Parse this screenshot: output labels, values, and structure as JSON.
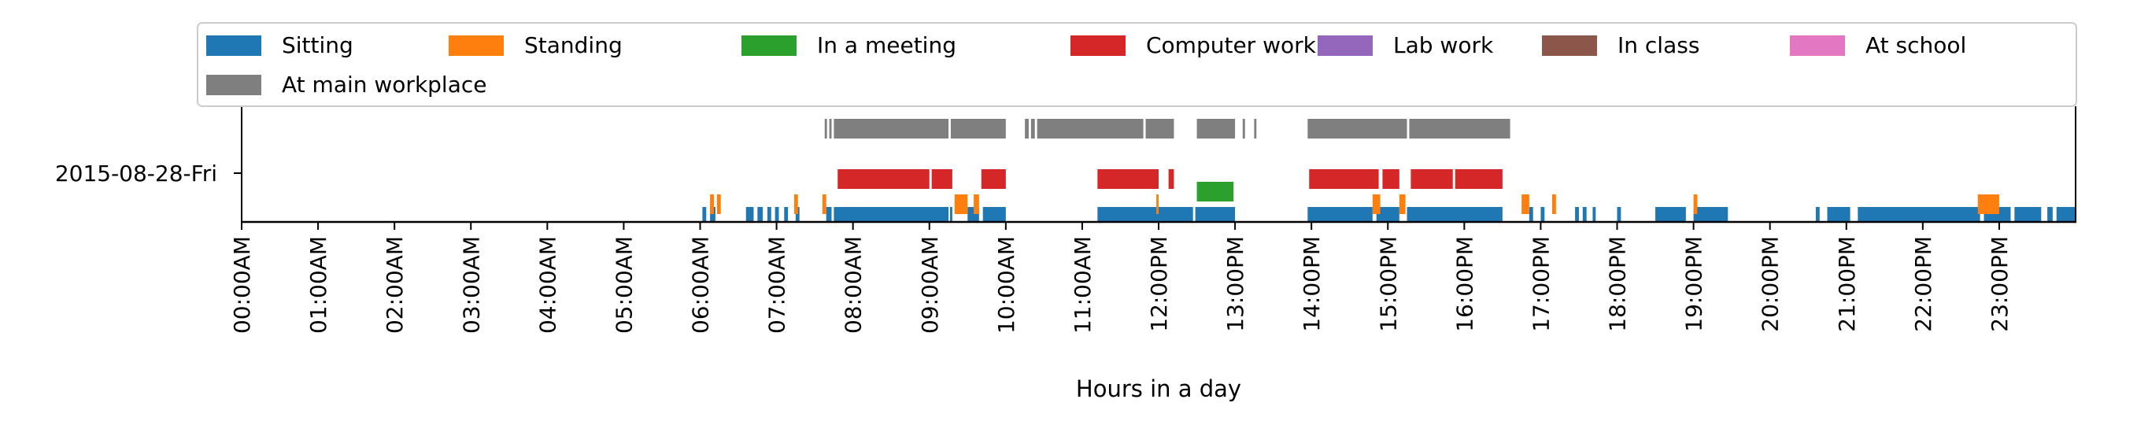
{
  "chart_data": {
    "type": "timeline",
    "title": "",
    "xlabel": "Hours in a day",
    "ylabel": "",
    "xlim": [
      0,
      24
    ],
    "day_label": "2015-08-28-Fri",
    "legend_placement": "top",
    "x_tick_labels": [
      "00:00AM",
      "01:00AM",
      "02:00AM",
      "03:00AM",
      "04:00AM",
      "05:00AM",
      "06:00AM",
      "07:00AM",
      "08:00AM",
      "09:00AM",
      "10:00AM",
      "11:00AM",
      "12:00PM",
      "13:00PM",
      "14:00PM",
      "15:00PM",
      "16:00PM",
      "17:00PM",
      "18:00PM",
      "19:00PM",
      "20:00PM",
      "21:00PM",
      "22:00PM",
      "23:00PM"
    ],
    "series": [
      {
        "name": "Sitting",
        "color": "#1f77b4",
        "intervals": [
          [
            6.03,
            6.08
          ],
          [
            6.13,
            6.2
          ],
          [
            6.6,
            6.7
          ],
          [
            6.75,
            6.82
          ],
          [
            6.88,
            6.93
          ],
          [
            6.98,
            7.03
          ],
          [
            7.1,
            7.15
          ],
          [
            7.25,
            7.3
          ],
          [
            7.65,
            7.72
          ],
          [
            7.75,
            9.25
          ],
          [
            9.27,
            9.3
          ],
          [
            9.5,
            9.65
          ],
          [
            9.7,
            10.0
          ],
          [
            11.2,
            12.45
          ],
          [
            12.48,
            13.0
          ],
          [
            13.95,
            14.8
          ],
          [
            14.85,
            15.15
          ],
          [
            15.25,
            16.5
          ],
          [
            16.85,
            16.9
          ],
          [
            17.0,
            17.05
          ],
          [
            17.45,
            17.5
          ],
          [
            17.55,
            17.6
          ],
          [
            17.68,
            17.72
          ],
          [
            18.0,
            18.05
          ],
          [
            18.5,
            18.9
          ],
          [
            19.0,
            19.45
          ],
          [
            20.6,
            20.65
          ],
          [
            20.75,
            21.05
          ],
          [
            21.15,
            22.75
          ],
          [
            22.8,
            23.15
          ],
          [
            23.2,
            23.55
          ],
          [
            23.63,
            23.7
          ],
          [
            23.75,
            24.0
          ]
        ]
      },
      {
        "name": "Standing",
        "color": "#ff7f0e",
        "intervals": [
          [
            6.13,
            6.18
          ],
          [
            6.22,
            6.27
          ],
          [
            7.23,
            7.28
          ],
          [
            7.6,
            7.65
          ],
          [
            9.33,
            9.5
          ],
          [
            9.58,
            9.65
          ],
          [
            11.97,
            12.0
          ],
          [
            14.8,
            14.9
          ],
          [
            15.15,
            15.23
          ],
          [
            16.75,
            16.85
          ],
          [
            17.15,
            17.2
          ],
          [
            19.0,
            19.05
          ],
          [
            22.72,
            23.0
          ]
        ]
      },
      {
        "name": "In a meeting",
        "color": "#2ca02c",
        "intervals": [
          [
            12.5,
            12.98
          ]
        ]
      },
      {
        "name": "Computer work",
        "color": "#d62728",
        "intervals": [
          [
            7.8,
            9.0
          ],
          [
            9.03,
            9.3
          ],
          [
            9.68,
            10.0
          ],
          [
            11.2,
            12.0
          ],
          [
            12.13,
            12.2
          ],
          [
            13.97,
            14.88
          ],
          [
            14.93,
            15.15
          ],
          [
            15.3,
            15.85
          ],
          [
            15.88,
            16.5
          ]
        ]
      },
      {
        "name": "Lab work",
        "color": "#9467bd",
        "intervals": []
      },
      {
        "name": "In class",
        "color": "#8c564b",
        "intervals": []
      },
      {
        "name": "At school",
        "color": "#e377c2",
        "intervals": []
      },
      {
        "name": "At main workplace",
        "color": "#7f7f7f",
        "intervals": [
          [
            7.63,
            7.66
          ],
          [
            7.69,
            7.72
          ],
          [
            7.75,
            9.25
          ],
          [
            9.28,
            10.0
          ],
          [
            10.25,
            10.3
          ],
          [
            10.33,
            10.38
          ],
          [
            10.41,
            11.8
          ],
          [
            11.83,
            12.2
          ],
          [
            12.5,
            13.0
          ],
          [
            13.1,
            13.13
          ],
          [
            13.25,
            13.28
          ],
          [
            13.95,
            15.25
          ],
          [
            15.28,
            16.6
          ]
        ]
      }
    ]
  }
}
